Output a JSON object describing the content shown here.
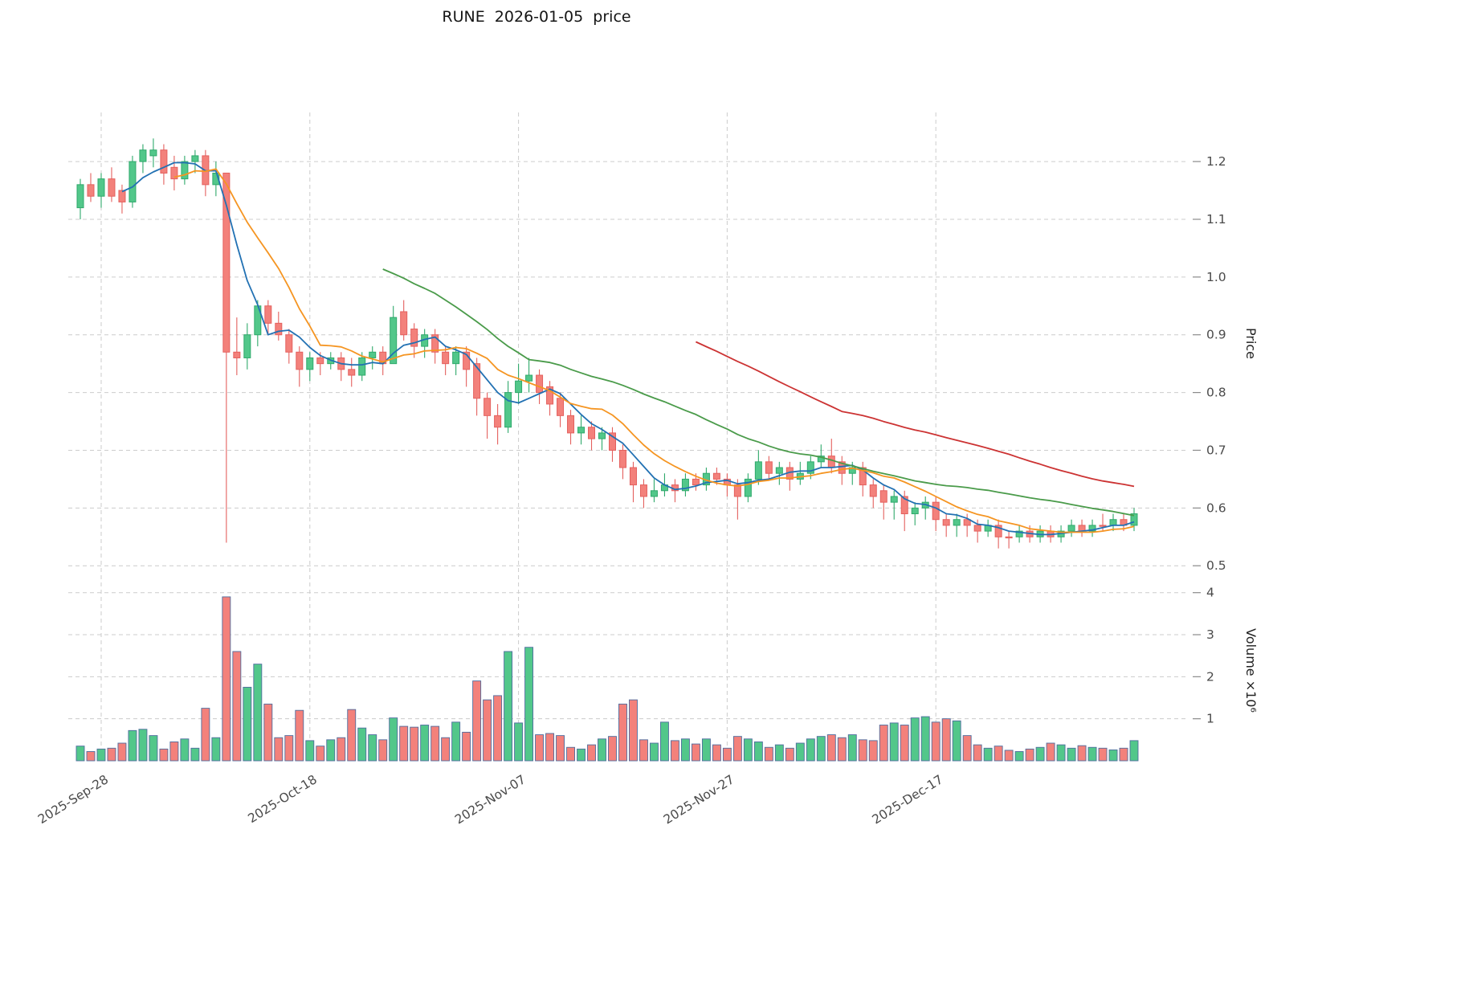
{
  "chart_data": {
    "type": "candlestick",
    "title": "RUNE  2026-01-05  price",
    "symbol": "RUNE",
    "as_of_date": "2026-01-05",
    "y_axis": {
      "label": "Price",
      "ticks": [
        1.2,
        1.1,
        1.0,
        0.9,
        0.8,
        0.7,
        0.6,
        0.5
      ],
      "range": [
        0.485,
        1.285
      ]
    },
    "volume_axis": {
      "label": "Volume  ×10⁶",
      "ticks": [
        1,
        2,
        3,
        4
      ],
      "range": [
        0,
        4.3
      ]
    },
    "x_axis": {
      "tick_labels": [
        "2025-Sep-28",
        "2025-Oct-18",
        "2025-Nov-07",
        "2025-Nov-27",
        "2025-Dec-17"
      ],
      "tick_indices": [
        2,
        22,
        42,
        62,
        82
      ]
    },
    "style": {
      "up_color": "#52c78a",
      "up_edge": "#2fa96b",
      "down_color": "#f3817b",
      "down_edge": "#e4605e",
      "volume_edge": "#4f6d9f",
      "grid_color": "#cccccc",
      "tick_text_color": "#4b4b4b",
      "tick_mark_color": "#8a8a8a",
      "background": "#ffffff"
    },
    "moving_averages": [
      {
        "name": "MA5",
        "window": 5,
        "color": "#2271b3"
      },
      {
        "name": "MA10",
        "window": 10,
        "color": "#f59522"
      },
      {
        "name": "MA30",
        "window": 30,
        "color": "#4a9b4a"
      },
      {
        "name": "MA60",
        "window": 60,
        "color": "#cc3333"
      }
    ],
    "columns": [
      "date",
      "open",
      "high",
      "low",
      "close",
      "volume_millions"
    ],
    "candles": [
      [
        "2025-09-26",
        1.12,
        1.17,
        1.1,
        1.16,
        0.35
      ],
      [
        "2025-09-27",
        1.16,
        1.18,
        1.13,
        1.14,
        0.22
      ],
      [
        "2025-09-28",
        1.14,
        1.18,
        1.12,
        1.17,
        0.28
      ],
      [
        "2025-09-29",
        1.17,
        1.19,
        1.13,
        1.14,
        0.3
      ],
      [
        "2025-09-30",
        1.15,
        1.16,
        1.11,
        1.13,
        0.42
      ],
      [
        "2025-10-01",
        1.13,
        1.21,
        1.12,
        1.2,
        0.72
      ],
      [
        "2025-10-02",
        1.2,
        1.23,
        1.18,
        1.22,
        0.75
      ],
      [
        "2025-10-03",
        1.21,
        1.24,
        1.19,
        1.22,
        0.6
      ],
      [
        "2025-10-04",
        1.22,
        1.23,
        1.16,
        1.18,
        0.28
      ],
      [
        "2025-10-05",
        1.19,
        1.21,
        1.15,
        1.17,
        0.45
      ],
      [
        "2025-10-06",
        1.17,
        1.21,
        1.16,
        1.2,
        0.52
      ],
      [
        "2025-10-07",
        1.2,
        1.22,
        1.18,
        1.21,
        0.3
      ],
      [
        "2025-10-08",
        1.21,
        1.22,
        1.14,
        1.16,
        1.25
      ],
      [
        "2025-10-09",
        1.16,
        1.2,
        1.14,
        1.18,
        0.55
      ],
      [
        "2025-10-10",
        1.18,
        1.18,
        0.54,
        0.87,
        3.9
      ],
      [
        "2025-10-11",
        0.87,
        0.93,
        0.83,
        0.86,
        2.6
      ],
      [
        "2025-10-12",
        0.86,
        0.92,
        0.84,
        0.9,
        1.75
      ],
      [
        "2025-10-13",
        0.9,
        0.96,
        0.88,
        0.95,
        2.3
      ],
      [
        "2025-10-14",
        0.95,
        0.96,
        0.9,
        0.92,
        1.35
      ],
      [
        "2025-10-15",
        0.92,
        0.94,
        0.89,
        0.9,
        0.55
      ],
      [
        "2025-10-16",
        0.9,
        0.91,
        0.85,
        0.87,
        0.6
      ],
      [
        "2025-10-17",
        0.87,
        0.88,
        0.81,
        0.84,
        1.2
      ],
      [
        "2025-10-18",
        0.84,
        0.87,
        0.82,
        0.86,
        0.48
      ],
      [
        "2025-10-19",
        0.86,
        0.87,
        0.83,
        0.85,
        0.35
      ],
      [
        "2025-10-20",
        0.85,
        0.87,
        0.84,
        0.86,
        0.5
      ],
      [
        "2025-10-21",
        0.86,
        0.87,
        0.82,
        0.84,
        0.55
      ],
      [
        "2025-10-22",
        0.84,
        0.86,
        0.81,
        0.83,
        1.22
      ],
      [
        "2025-10-23",
        0.83,
        0.87,
        0.82,
        0.86,
        0.78
      ],
      [
        "2025-10-24",
        0.86,
        0.88,
        0.84,
        0.87,
        0.62
      ],
      [
        "2025-10-25",
        0.87,
        0.88,
        0.83,
        0.85,
        0.5
      ],
      [
        "2025-10-26",
        0.85,
        0.95,
        0.85,
        0.93,
        1.02
      ],
      [
        "2025-10-27",
        0.94,
        0.96,
        0.89,
        0.9,
        0.82
      ],
      [
        "2025-10-28",
        0.91,
        0.92,
        0.86,
        0.88,
        0.8
      ],
      [
        "2025-10-29",
        0.88,
        0.91,
        0.86,
        0.9,
        0.85
      ],
      [
        "2025-10-30",
        0.9,
        0.91,
        0.85,
        0.87,
        0.82
      ],
      [
        "2025-10-31",
        0.87,
        0.88,
        0.83,
        0.85,
        0.55
      ],
      [
        "2025-11-01",
        0.85,
        0.88,
        0.83,
        0.87,
        0.92
      ],
      [
        "2025-11-02",
        0.87,
        0.88,
        0.81,
        0.84,
        0.68
      ],
      [
        "2025-11-03",
        0.85,
        0.86,
        0.76,
        0.79,
        1.9
      ],
      [
        "2025-11-04",
        0.79,
        0.8,
        0.72,
        0.76,
        1.45
      ],
      [
        "2025-11-05",
        0.76,
        0.78,
        0.71,
        0.74,
        1.55
      ],
      [
        "2025-11-06",
        0.74,
        0.82,
        0.73,
        0.8,
        2.6
      ],
      [
        "2025-11-07",
        0.8,
        0.85,
        0.78,
        0.82,
        0.9
      ],
      [
        "2025-11-08",
        0.82,
        0.86,
        0.8,
        0.83,
        2.7
      ],
      [
        "2025-11-09",
        0.83,
        0.84,
        0.78,
        0.8,
        0.62
      ],
      [
        "2025-11-10",
        0.81,
        0.82,
        0.76,
        0.78,
        0.65
      ],
      [
        "2025-11-11",
        0.79,
        0.8,
        0.74,
        0.76,
        0.6
      ],
      [
        "2025-11-12",
        0.76,
        0.77,
        0.71,
        0.73,
        0.32
      ],
      [
        "2025-11-13",
        0.73,
        0.76,
        0.71,
        0.74,
        0.28
      ],
      [
        "2025-11-14",
        0.74,
        0.75,
        0.7,
        0.72,
        0.38
      ],
      [
        "2025-11-15",
        0.72,
        0.74,
        0.7,
        0.73,
        0.52
      ],
      [
        "2025-11-16",
        0.73,
        0.74,
        0.68,
        0.7,
        0.58
      ],
      [
        "2025-11-17",
        0.7,
        0.71,
        0.65,
        0.67,
        1.35
      ],
      [
        "2025-11-18",
        0.67,
        0.68,
        0.61,
        0.64,
        1.45
      ],
      [
        "2025-11-19",
        0.64,
        0.65,
        0.6,
        0.62,
        0.5
      ],
      [
        "2025-11-20",
        0.62,
        0.65,
        0.61,
        0.63,
        0.42
      ],
      [
        "2025-11-21",
        0.63,
        0.66,
        0.62,
        0.64,
        0.92
      ],
      [
        "2025-11-22",
        0.64,
        0.65,
        0.61,
        0.63,
        0.48
      ],
      [
        "2025-11-23",
        0.63,
        0.66,
        0.62,
        0.65,
        0.52
      ],
      [
        "2025-11-24",
        0.65,
        0.66,
        0.63,
        0.64,
        0.4
      ],
      [
        "2025-11-25",
        0.64,
        0.67,
        0.63,
        0.66,
        0.52
      ],
      [
        "2025-11-26",
        0.66,
        0.67,
        0.64,
        0.65,
        0.38
      ],
      [
        "2025-11-27",
        0.65,
        0.66,
        0.62,
        0.64,
        0.3
      ],
      [
        "2025-11-28",
        0.64,
        0.65,
        0.58,
        0.62,
        0.58
      ],
      [
        "2025-11-29",
        0.62,
        0.66,
        0.61,
        0.65,
        0.52
      ],
      [
        "2025-11-30",
        0.65,
        0.7,
        0.64,
        0.68,
        0.45
      ],
      [
        "2025-12-01",
        0.68,
        0.69,
        0.65,
        0.66,
        0.32
      ],
      [
        "2025-12-02",
        0.66,
        0.68,
        0.64,
        0.67,
        0.38
      ],
      [
        "2025-12-03",
        0.67,
        0.68,
        0.63,
        0.65,
        0.3
      ],
      [
        "2025-12-04",
        0.65,
        0.68,
        0.64,
        0.66,
        0.42
      ],
      [
        "2025-12-05",
        0.66,
        0.69,
        0.65,
        0.68,
        0.52
      ],
      [
        "2025-12-06",
        0.68,
        0.71,
        0.67,
        0.69,
        0.58
      ],
      [
        "2025-12-07",
        0.69,
        0.72,
        0.66,
        0.67,
        0.62
      ],
      [
        "2025-12-08",
        0.68,
        0.69,
        0.64,
        0.66,
        0.55
      ],
      [
        "2025-12-09",
        0.66,
        0.68,
        0.64,
        0.67,
        0.62
      ],
      [
        "2025-12-10",
        0.67,
        0.68,
        0.62,
        0.64,
        0.5
      ],
      [
        "2025-12-11",
        0.64,
        0.65,
        0.6,
        0.62,
        0.48
      ],
      [
        "2025-12-12",
        0.63,
        0.64,
        0.58,
        0.61,
        0.85
      ],
      [
        "2025-12-13",
        0.61,
        0.63,
        0.58,
        0.62,
        0.9
      ],
      [
        "2025-12-14",
        0.62,
        0.63,
        0.56,
        0.59,
        0.85
      ],
      [
        "2025-12-15",
        0.59,
        0.61,
        0.57,
        0.6,
        1.02
      ],
      [
        "2025-12-16",
        0.6,
        0.62,
        0.58,
        0.61,
        1.05
      ],
      [
        "2025-12-17",
        0.61,
        0.62,
        0.56,
        0.58,
        0.92
      ],
      [
        "2025-12-18",
        0.58,
        0.59,
        0.55,
        0.57,
        1.0
      ],
      [
        "2025-12-19",
        0.57,
        0.59,
        0.55,
        0.58,
        0.95
      ],
      [
        "2025-12-20",
        0.58,
        0.59,
        0.55,
        0.57,
        0.6
      ],
      [
        "2025-12-21",
        0.57,
        0.58,
        0.54,
        0.56,
        0.38
      ],
      [
        "2025-12-22",
        0.56,
        0.58,
        0.55,
        0.57,
        0.3
      ],
      [
        "2025-12-23",
        0.57,
        0.58,
        0.53,
        0.55,
        0.35
      ],
      [
        "2025-12-24",
        0.55,
        0.56,
        0.53,
        0.55,
        0.25
      ],
      [
        "2025-12-25",
        0.55,
        0.57,
        0.54,
        0.56,
        0.22
      ],
      [
        "2025-12-26",
        0.56,
        0.57,
        0.54,
        0.55,
        0.28
      ],
      [
        "2025-12-27",
        0.55,
        0.57,
        0.54,
        0.56,
        0.32
      ],
      [
        "2025-12-28",
        0.56,
        0.57,
        0.54,
        0.55,
        0.42
      ],
      [
        "2025-12-29",
        0.55,
        0.57,
        0.54,
        0.56,
        0.38
      ],
      [
        "2025-12-30",
        0.56,
        0.58,
        0.55,
        0.57,
        0.3
      ],
      [
        "2025-12-31",
        0.57,
        0.58,
        0.55,
        0.56,
        0.36
      ],
      [
        "2026-01-01",
        0.56,
        0.58,
        0.55,
        0.57,
        0.32
      ],
      [
        "2026-01-02",
        0.57,
        0.59,
        0.56,
        0.57,
        0.3
      ],
      [
        "2026-01-03",
        0.57,
        0.59,
        0.56,
        0.58,
        0.26
      ],
      [
        "2026-01-04",
        0.58,
        0.59,
        0.56,
        0.57,
        0.3
      ],
      [
        "2026-01-05",
        0.57,
        0.6,
        0.56,
        0.59,
        0.48
      ]
    ]
  }
}
